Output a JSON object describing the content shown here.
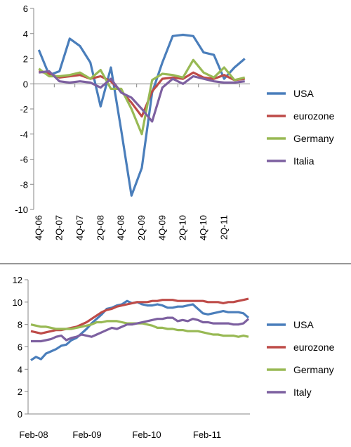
{
  "chart_data": [
    {
      "type": "line",
      "ylim": [
        -10,
        6
      ],
      "yticks": [
        6,
        4,
        2,
        0,
        -2,
        -4,
        -6,
        -8,
        -10
      ],
      "x_labels": [
        "4Q-06",
        "2Q-07",
        "4Q-07",
        "2Q-08",
        "4Q-08",
        "2Q-09",
        "4Q-09",
        "2Q-10",
        "4Q-10",
        "2Q-11"
      ],
      "legend_position": "right",
      "grid": false,
      "series": [
        {
          "name": "USA",
          "color": "#4a7ebb",
          "values": [
            2.7,
            0.7,
            1.0,
            3.6,
            3.0,
            1.7,
            -1.8,
            1.3,
            -3.7,
            -8.9,
            -6.7,
            -0.7,
            1.7,
            3.8,
            3.9,
            3.8,
            2.5,
            2.3,
            0.4,
            1.3,
            2.0
          ]
        },
        {
          "name": "eurozone",
          "color": "#be4b48",
          "values": [
            1.0,
            0.8,
            0.5,
            0.6,
            0.7,
            0.4,
            0.6,
            0.2,
            -0.6,
            -1.5,
            -2.6,
            -0.6,
            0.4,
            0.5,
            0.4,
            0.9,
            0.5,
            0.4,
            0.7,
            0.3,
            0.4
          ]
        },
        {
          "name": "Germany",
          "color": "#98b954",
          "values": [
            1.2,
            0.6,
            0.6,
            0.7,
            0.9,
            0.4,
            1.1,
            -0.4,
            -0.4,
            -2.0,
            -4.0,
            0.3,
            0.8,
            0.7,
            0.5,
            1.9,
            0.9,
            0.5,
            1.3,
            0.3,
            0.5
          ]
        },
        {
          "name": "Italia",
          "color": "#7d60a0",
          "values": [
            0.9,
            1.0,
            0.2,
            0.1,
            0.2,
            0.1,
            -0.3,
            0.4,
            -0.7,
            -1.1,
            -2.0,
            -3.0,
            -0.3,
            0.4,
            0.0,
            0.6,
            0.4,
            0.2,
            0.1,
            0.1,
            0.2
          ]
        }
      ]
    },
    {
      "type": "line",
      "ylim": [
        0,
        12
      ],
      "yticks": [
        12,
        10,
        8,
        6,
        4,
        2,
        0
      ],
      "x_labels": [
        "Feb-08",
        "Feb-09",
        "Feb-10",
        "Feb-11"
      ],
      "legend_position": "right",
      "grid": false,
      "series": [
        {
          "name": "USA",
          "color": "#4a7ebb",
          "values": [
            4.8,
            5.1,
            4.9,
            5.4,
            5.6,
            5.8,
            6.1,
            6.2,
            6.6,
            6.8,
            7.2,
            7.6,
            8.1,
            8.5,
            8.9,
            9.4,
            9.5,
            9.7,
            9.8,
            10.1,
            9.9,
            10.0,
            9.8,
            9.7,
            9.7,
            9.8,
            9.7,
            9.5,
            9.5,
            9.6,
            9.6,
            9.7,
            9.8,
            9.4,
            9.0,
            8.9,
            9.0,
            9.1,
            9.2,
            9.1,
            9.1,
            9.1,
            9.0,
            8.6
          ]
        },
        {
          "name": "eurozone",
          "color": "#be4b48",
          "values": [
            7.4,
            7.3,
            7.2,
            7.3,
            7.4,
            7.5,
            7.5,
            7.6,
            7.7,
            7.8,
            8.0,
            8.2,
            8.5,
            8.8,
            9.1,
            9.3,
            9.4,
            9.6,
            9.7,
            9.8,
            9.9,
            10.0,
            10.0,
            10.0,
            10.1,
            10.1,
            10.2,
            10.2,
            10.2,
            10.1,
            10.1,
            10.1,
            10.1,
            10.1,
            10.1,
            10.0,
            10.0,
            10.0,
            9.9,
            10.0,
            10.0,
            10.1,
            10.2,
            10.3
          ]
        },
        {
          "name": "Germany",
          "color": "#98b954",
          "values": [
            8.0,
            7.9,
            7.8,
            7.8,
            7.7,
            7.6,
            7.6,
            7.6,
            7.6,
            7.7,
            7.8,
            7.9,
            8.0,
            8.2,
            8.2,
            8.3,
            8.3,
            8.3,
            8.2,
            8.1,
            8.1,
            8.1,
            8.1,
            8.0,
            7.9,
            7.7,
            7.7,
            7.6,
            7.6,
            7.5,
            7.5,
            7.4,
            7.4,
            7.4,
            7.3,
            7.2,
            7.1,
            7.1,
            7.0,
            7.0,
            7.0,
            6.9,
            7.0,
            6.9
          ]
        },
        {
          "name": "Italy",
          "color": "#7d60a0",
          "values": [
            6.5,
            6.5,
            6.5,
            6.6,
            6.7,
            6.9,
            7.0,
            6.6,
            6.8,
            6.9,
            7.1,
            7.0,
            6.9,
            7.1,
            7.3,
            7.5,
            7.7,
            7.6,
            7.8,
            8.0,
            8.0,
            8.1,
            8.2,
            8.3,
            8.4,
            8.5,
            8.5,
            8.6,
            8.6,
            8.3,
            8.4,
            8.3,
            8.5,
            8.4,
            8.2,
            8.2,
            8.1,
            8.1,
            8.1,
            8.1,
            8.0,
            8.0,
            8.1,
            8.5
          ]
        }
      ]
    }
  ]
}
